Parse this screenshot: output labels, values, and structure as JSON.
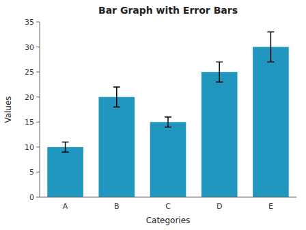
{
  "chart_data": {
    "type": "bar",
    "title": "Bar Graph with Error Bars",
    "xlabel": "Categories",
    "ylabel": "Values",
    "categories": [
      "A",
      "B",
      "C",
      "D",
      "E"
    ],
    "values": [
      10,
      20,
      15,
      25,
      30
    ],
    "errors": [
      1,
      2,
      1,
      2,
      3
    ],
    "color": "#2196be",
    "ylim": [
      0,
      35
    ],
    "yticks": [
      0,
      5,
      10,
      15,
      20,
      25,
      30,
      35
    ],
    "grid": false
  }
}
